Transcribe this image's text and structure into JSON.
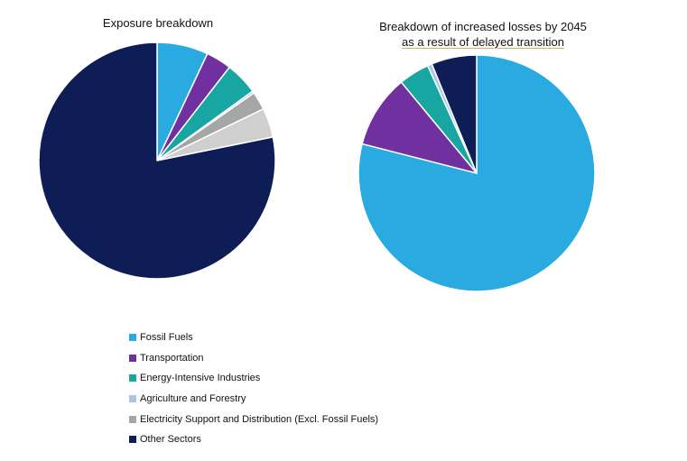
{
  "chart_data": [
    {
      "type": "pie",
      "title": "Exposure breakdown",
      "start_angle_deg": 0,
      "direction": "clockwise",
      "slices": [
        {
          "label": "Fossil Fuels",
          "value": 7.0
        },
        {
          "label": "Transportation",
          "value": 3.5
        },
        {
          "label": "Energy-Intensive Industries",
          "value": 4.5
        },
        {
          "label": "Agriculture and Forestry",
          "value": 0.3
        },
        {
          "label": "Electricity Support and Distribution (Excl. Fossil Fuels)",
          "value": 2.5
        },
        {
          "label": "Electricity Support and Distribution (Excl. Fossil Fuels)",
          "value": 4.0
        },
        {
          "label": "Other Sectors",
          "value": 78.2
        }
      ]
    },
    {
      "type": "pie",
      "title_line1": "Breakdown of increased losses by 2045",
      "title_line2": "as a result of delayed transition",
      "start_angle_deg": 0,
      "direction": "clockwise",
      "slices": [
        {
          "label": "Fossil Fuels",
          "value": 79.0
        },
        {
          "label": "Transportation",
          "value": 10.0
        },
        {
          "label": "Energy-Intensive Industries",
          "value": 4.2
        },
        {
          "label": "Agriculture and Forestry",
          "value": 0.6
        },
        {
          "label": "Other Sectors",
          "value": 6.2
        }
      ]
    }
  ],
  "legend": [
    {
      "label": "Fossil Fuels",
      "color": "#29abe2"
    },
    {
      "label": "Transportation",
      "color": "#7030a0"
    },
    {
      "label": "Energy-Intensive Industries",
      "color": "#17a6a1"
    },
    {
      "label": "Agriculture and Forestry",
      "color": "#a9c6ea"
    },
    {
      "label": "Electricity Support and Distribution (Excl. Fossil Fuels)",
      "color": "#a6a6a6"
    },
    {
      "label": "Other Sectors",
      "color": "#0e1d56"
    }
  ],
  "left_extra_slice_color": "#cfcfcf"
}
